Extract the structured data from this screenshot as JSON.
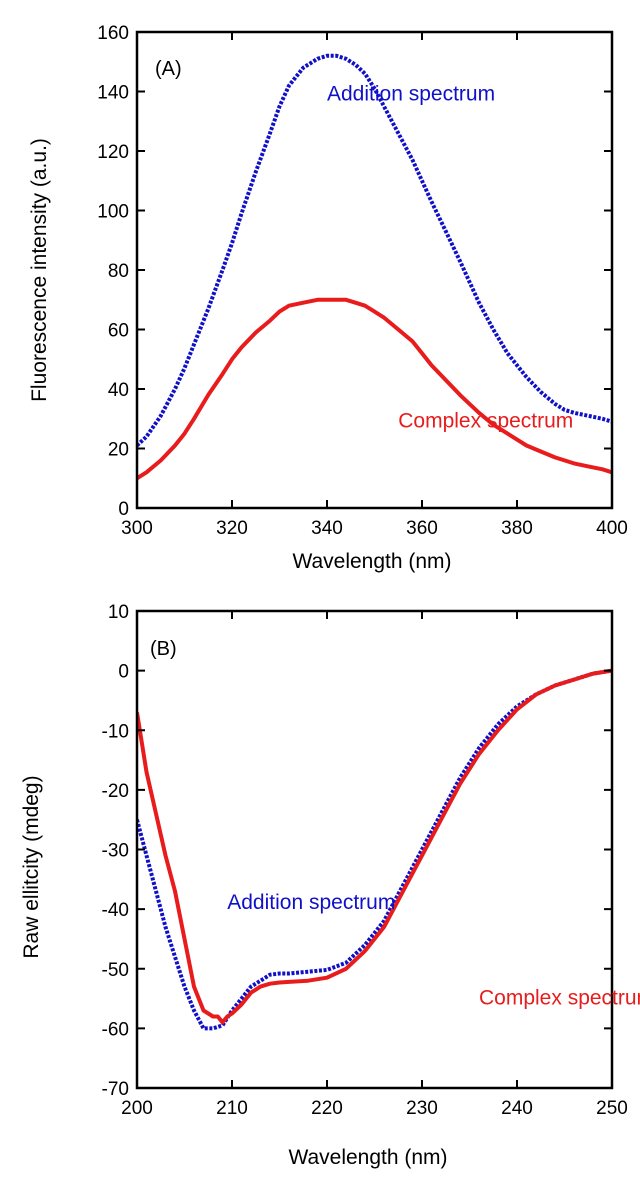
{
  "chart_data": [
    {
      "type": "line",
      "panel_label": "(A)",
      "xlabel": "Wavelength (nm)",
      "ylabel": "Fluorescence intensity (a.u.)",
      "xlim": [
        300,
        400
      ],
      "ylim": [
        0,
        160
      ],
      "x_ticks": [
        300,
        320,
        340,
        360,
        380,
        400
      ],
      "y_ticks": [
        0,
        20,
        40,
        60,
        80,
        100,
        120,
        140,
        160
      ],
      "grid": false,
      "series": [
        {
          "name": "Addition spectrum",
          "color": "#1010c8",
          "style": "dotted",
          "x": [
            300,
            302,
            305,
            308,
            310,
            312,
            315,
            318,
            320,
            322,
            325,
            328,
            330,
            332,
            335,
            338,
            340,
            342,
            344,
            346,
            348,
            350,
            352,
            355,
            358,
            360,
            362,
            365,
            368,
            370,
            372,
            375,
            378,
            380,
            382,
            385,
            388,
            390,
            392,
            395,
            398,
            400
          ],
          "y": [
            21,
            24,
            31,
            40,
            47,
            55,
            67,
            80,
            89,
            99,
            113,
            126,
            135,
            142,
            148,
            151,
            152,
            152,
            151,
            149,
            146,
            141,
            135,
            126,
            117,
            110,
            103,
            93,
            83,
            76,
            69,
            60,
            52,
            48,
            44,
            39,
            35,
            33,
            32,
            31,
            30,
            29
          ]
        },
        {
          "name": "Complex spectrum",
          "color": "#e81c1c",
          "style": "solid",
          "x": [
            300,
            302,
            305,
            308,
            310,
            312,
            315,
            318,
            320,
            322,
            325,
            328,
            330,
            332,
            335,
            338,
            340,
            342,
            344,
            346,
            348,
            350,
            352,
            355,
            358,
            360,
            362,
            365,
            368,
            370,
            372,
            375,
            378,
            380,
            382,
            385,
            388,
            390,
            392,
            395,
            398,
            400
          ],
          "y": [
            10,
            12,
            16,
            21,
            25,
            30,
            38,
            45,
            50,
            54,
            59,
            63,
            66,
            68,
            69,
            70,
            70,
            70,
            70,
            69,
            68,
            66,
            64,
            60,
            56,
            52,
            48,
            43,
            38,
            35,
            32,
            28,
            25,
            23,
            21,
            19,
            17,
            16,
            15,
            14,
            13,
            12
          ]
        }
      ],
      "annotations": [
        {
          "text": "Addition spectrum",
          "color": "#1010c8",
          "x": 340,
          "y": 137
        },
        {
          "text": "Complex spectrum",
          "color": "#e81c1c",
          "x": 355,
          "y": 27
        }
      ]
    },
    {
      "type": "line",
      "panel_label": "(B)",
      "xlabel": "Wavelength (nm)",
      "ylabel": "Raw ellitcity (mdeg)",
      "xlim": [
        200,
        250
      ],
      "ylim": [
        -70,
        10
      ],
      "x_ticks": [
        200,
        210,
        220,
        230,
        240,
        250
      ],
      "y_ticks": [
        -70,
        -60,
        -50,
        -40,
        -30,
        -20,
        -10,
        0,
        10
      ],
      "grid": false,
      "series": [
        {
          "name": "Addition spectrum",
          "color": "#1010c8",
          "style": "dotted",
          "x": [
            200,
            201,
            202,
            203,
            204,
            205,
            206,
            207,
            208,
            209,
            210,
            211,
            212,
            213,
            214,
            215,
            216,
            218,
            220,
            222,
            224,
            226,
            228,
            230,
            232,
            234,
            236,
            238,
            240,
            242,
            244,
            246,
            248,
            250
          ],
          "y": [
            -25,
            -31,
            -37,
            -43,
            -48,
            -53,
            -57,
            -60,
            -60,
            -59.5,
            -57,
            -55,
            -53,
            -52,
            -51,
            -50.8,
            -50.8,
            -50.5,
            -50.2,
            -49,
            -46,
            -42,
            -36,
            -30,
            -24,
            -18,
            -13,
            -9,
            -6,
            -4,
            -2.5,
            -1.5,
            -0.5,
            0
          ]
        },
        {
          "name": "Complex spectrum",
          "color": "#e81c1c",
          "style": "solid",
          "x": [
            200,
            201,
            202,
            203,
            204,
            205,
            206,
            207,
            208,
            208.5,
            209,
            209.5,
            210,
            211,
            212,
            213,
            214,
            215,
            216,
            218,
            220,
            222,
            224,
            226,
            228,
            230,
            232,
            234,
            236,
            238,
            240,
            242,
            244,
            246,
            248,
            250
          ],
          "y": [
            -7,
            -17,
            -24,
            -31,
            -37,
            -45,
            -53,
            -57,
            -58,
            -58,
            -59,
            -58,
            -57.5,
            -56,
            -54,
            -53,
            -52.5,
            -52.3,
            -52.2,
            -52,
            -51.5,
            -50,
            -47,
            -43,
            -37,
            -31,
            -25,
            -19,
            -14,
            -10,
            -6.5,
            -4,
            -2.5,
            -1.5,
            -0.5,
            0
          ]
        }
      ],
      "annotations": [
        {
          "text": "Addition spectrum",
          "color": "#1010c8",
          "x": 209.5,
          "y": -40
        },
        {
          "text": "Complex spectrum",
          "color": "#e81c1c",
          "x": 236,
          "y": -56
        }
      ]
    }
  ]
}
